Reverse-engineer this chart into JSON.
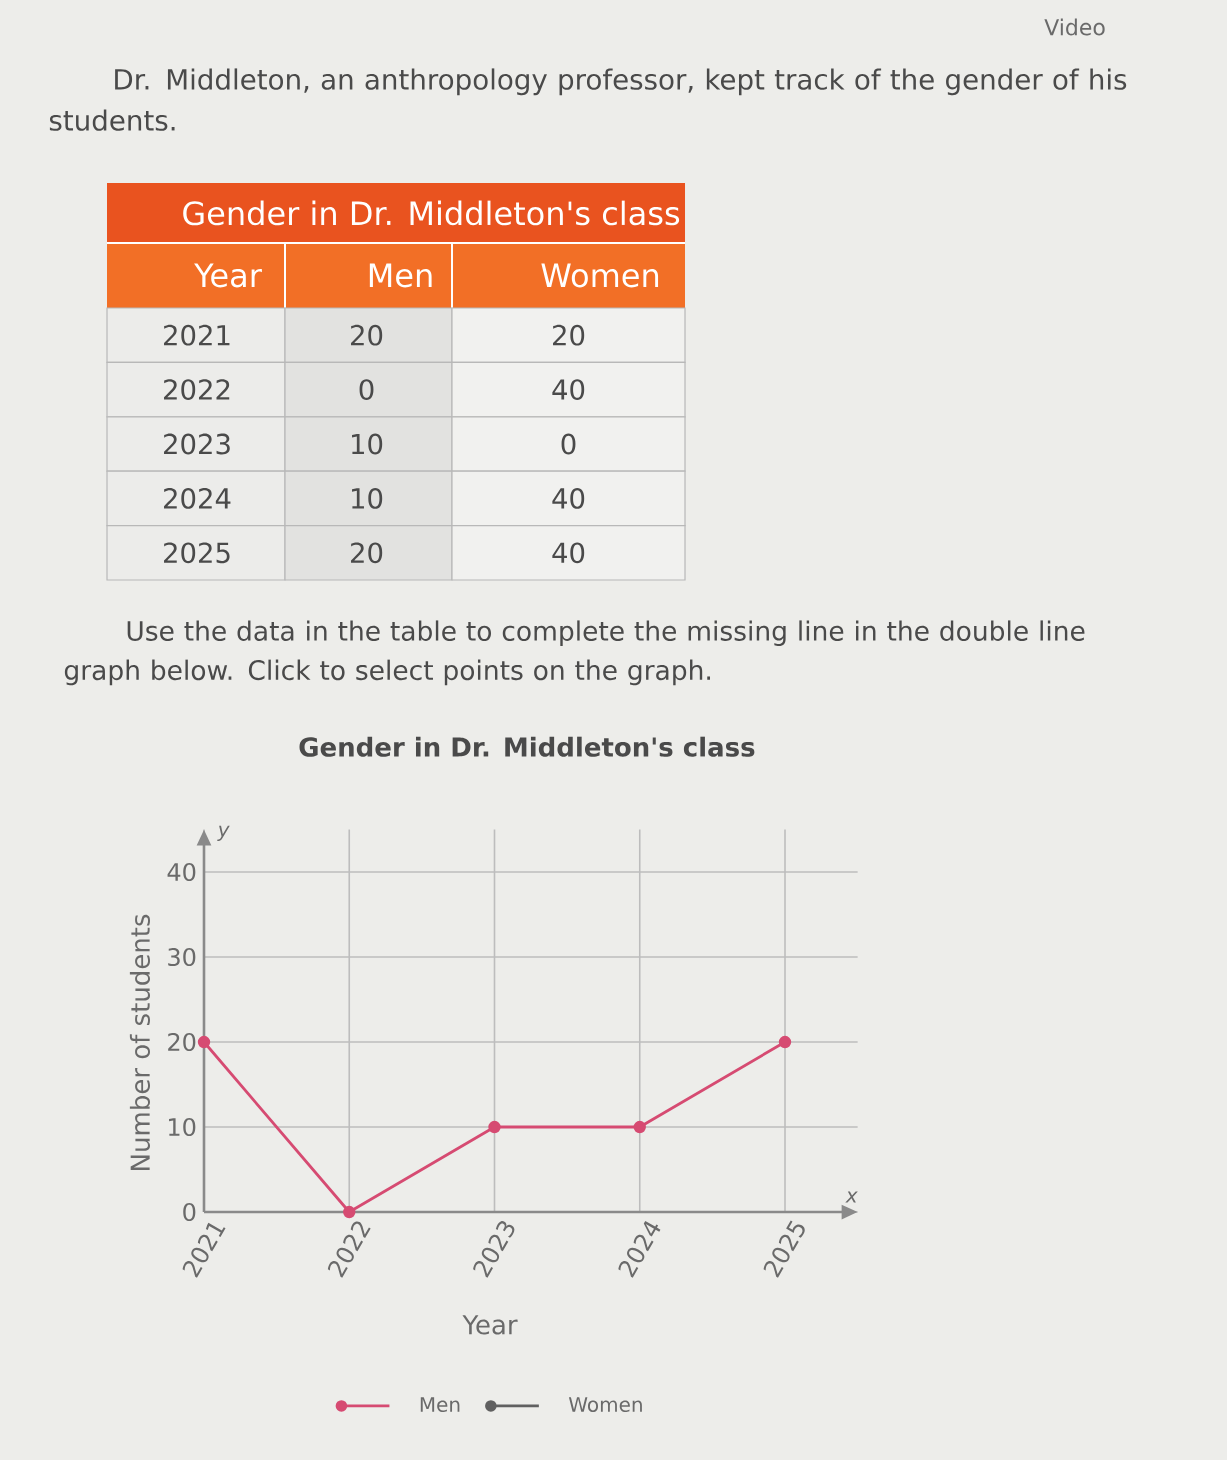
{
  "chart_data": [
    {
      "type": "heatmap",
      "title": "Gender in Dr. Middleton's class",
      "ylabel": "Year",
      "categories": [
        "Men",
        "Women"
      ],
      "y_categories": [
        "2021",
        "2022",
        "2023",
        "2024",
        "2025"
      ],
      "cells": [
        [
          20,
          20
        ],
        [
          0,
          40
        ],
        [
          10,
          0
        ],
        [
          10,
          40
        ],
        [
          20,
          40
        ]
      ],
      "data_labels": true,
      "annotations": [
        "Video",
        "Dr. Middleton, an anthropology professor, kept track of the gender of his students.",
        "Use the data in the table to complete the missing line in the double line graph below. Click to select points on the graph."
      ]
    },
    {
      "type": "line",
      "title": "Gender in Dr. Middleton's class",
      "xlabel": "Year",
      "ylabel": "Number of students",
      "categories": [
        "2021",
        "2022",
        "2023",
        "2024",
        "2025"
      ],
      "series": [
        {
          "name": "Men",
          "color": "#d64b72",
          "values": [
            20,
            0,
            10,
            10,
            20
          ]
        },
        {
          "name": "Women",
          "color": "#606060",
          "values": [
            null,
            null,
            null,
            null,
            null
          ]
        }
      ],
      "ylim": [
        0,
        45
      ],
      "yticks": [
        0,
        10,
        20,
        30,
        40
      ],
      "grid": true,
      "legend": "bottom",
      "marker": "circle",
      "annotations": [
        "y",
        "x"
      ]
    }
  ]
}
